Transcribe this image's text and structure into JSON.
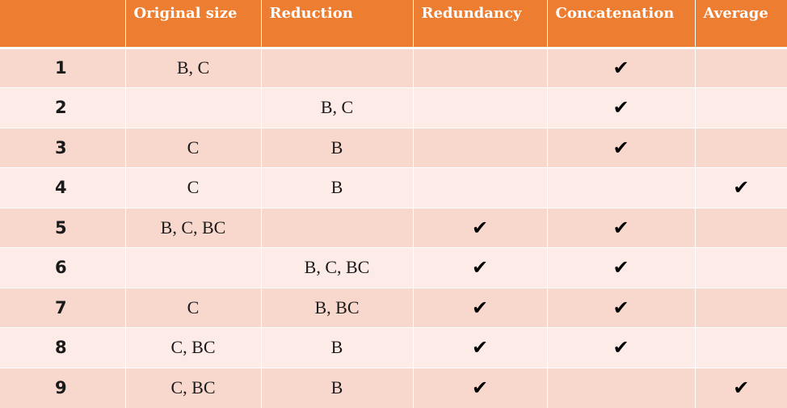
{
  "headers": [
    "",
    "Original size",
    "Reduction",
    "Redundancy",
    "Concatenation",
    "Average"
  ],
  "check_symbol": "✔",
  "rows": [
    {
      "id": "1",
      "original": "B, C",
      "reduction": "",
      "redundancy": false,
      "concatenation": true,
      "average": false
    },
    {
      "id": "2",
      "original": "",
      "reduction": "B, C",
      "redundancy": false,
      "concatenation": true,
      "average": false
    },
    {
      "id": "3",
      "original": "C",
      "reduction": "B",
      "redundancy": false,
      "concatenation": true,
      "average": false
    },
    {
      "id": "4",
      "original": "C",
      "reduction": "B",
      "redundancy": false,
      "concatenation": false,
      "average": true
    },
    {
      "id": "5",
      "original": "B, C, BC",
      "reduction": "",
      "redundancy": true,
      "concatenation": true,
      "average": false
    },
    {
      "id": "6",
      "original": "",
      "reduction": "B, C, BC",
      "redundancy": true,
      "concatenation": true,
      "average": false
    },
    {
      "id": "7",
      "original": "C",
      "reduction": "B, BC",
      "redundancy": true,
      "concatenation": true,
      "average": false
    },
    {
      "id": "8",
      "original": "C, BC",
      "reduction": "B",
      "redundancy": true,
      "concatenation": true,
      "average": false
    },
    {
      "id": "9",
      "original": "C, BC",
      "reduction": "B",
      "redundancy": true,
      "concatenation": false,
      "average": true
    }
  ],
  "colors": {
    "header_bg": "#ED7D31",
    "row_dark": "#F8D7CC",
    "row_light": "#FCEBE7"
  }
}
